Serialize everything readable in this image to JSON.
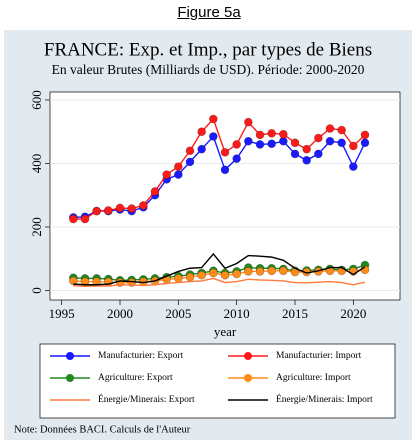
{
  "header": "Figure 5a",
  "chart_data": {
    "type": "line",
    "title": "FRANCE: Exp. et Imp.,  par types de Biens",
    "subtitle": "En valeur Brutes (Milliards de USD). Période: 2000-2020",
    "xlabel": "year",
    "note": "Note: Données BACI. Calculs de l'Auteur",
    "x": [
      1996,
      1997,
      1998,
      1999,
      2000,
      2001,
      2002,
      2003,
      2004,
      2005,
      2006,
      2007,
      2008,
      2009,
      2010,
      2011,
      2012,
      2013,
      2014,
      2015,
      2016,
      2017,
      2018,
      2019,
      2020,
      2021
    ],
    "xlim": [
      1994,
      2024
    ],
    "xticks": [
      1995,
      2000,
      2005,
      2010,
      2015,
      2020
    ],
    "ylim": [
      -30,
      625
    ],
    "yticks": [
      0,
      200,
      400,
      600
    ],
    "grid": true,
    "series": [
      {
        "name": "Manufacturier: Export",
        "color": "#1a1aff",
        "marker": true,
        "values": [
          230,
          232,
          250,
          250,
          255,
          250,
          262,
          300,
          350,
          365,
          405,
          445,
          485,
          380,
          415,
          470,
          460,
          462,
          470,
          430,
          410,
          430,
          470,
          465,
          390,
          465
        ]
      },
      {
        "name": "Manufacturier: Import",
        "color": "#ff1a1a",
        "marker": true,
        "values": [
          225,
          225,
          250,
          252,
          260,
          258,
          268,
          312,
          365,
          390,
          440,
          500,
          540,
          435,
          460,
          530,
          490,
          495,
          492,
          465,
          445,
          480,
          510,
          505,
          455,
          490
        ]
      },
      {
        "name": "Agriculture: Export",
        "color": "#1f8a1f",
        "marker": true,
        "values": [
          40,
          38,
          38,
          36,
          32,
          33,
          35,
          38,
          42,
          45,
          50,
          55,
          62,
          55,
          60,
          72,
          70,
          70,
          68,
          62,
          63,
          65,
          68,
          65,
          68,
          80
        ]
      },
      {
        "name": "Agriculture: Import",
        "color": "#ff8c1a",
        "marker": true,
        "values": [
          30,
          28,
          28,
          27,
          25,
          25,
          28,
          30,
          35,
          38,
          42,
          48,
          55,
          48,
          52,
          60,
          60,
          62,
          62,
          58,
          58,
          60,
          62,
          62,
          60,
          65
        ]
      },
      {
        "name": "Énergie/Minerais: Export",
        "color": "#ff7a3d",
        "marker": false,
        "values": [
          15,
          13,
          14,
          14,
          18,
          17,
          16,
          18,
          22,
          25,
          28,
          30,
          38,
          25,
          28,
          35,
          33,
          32,
          30,
          25,
          24,
          26,
          28,
          25,
          18,
          26
        ]
      },
      {
        "name": "Énergie/Minerais: Import",
        "color": "#000000",
        "marker": false,
        "values": [
          20,
          18,
          18,
          20,
          30,
          28,
          25,
          30,
          45,
          60,
          70,
          72,
          115,
          70,
          85,
          110,
          108,
          105,
          95,
          70,
          55,
          62,
          72,
          72,
          50,
          75
        ]
      }
    ]
  }
}
